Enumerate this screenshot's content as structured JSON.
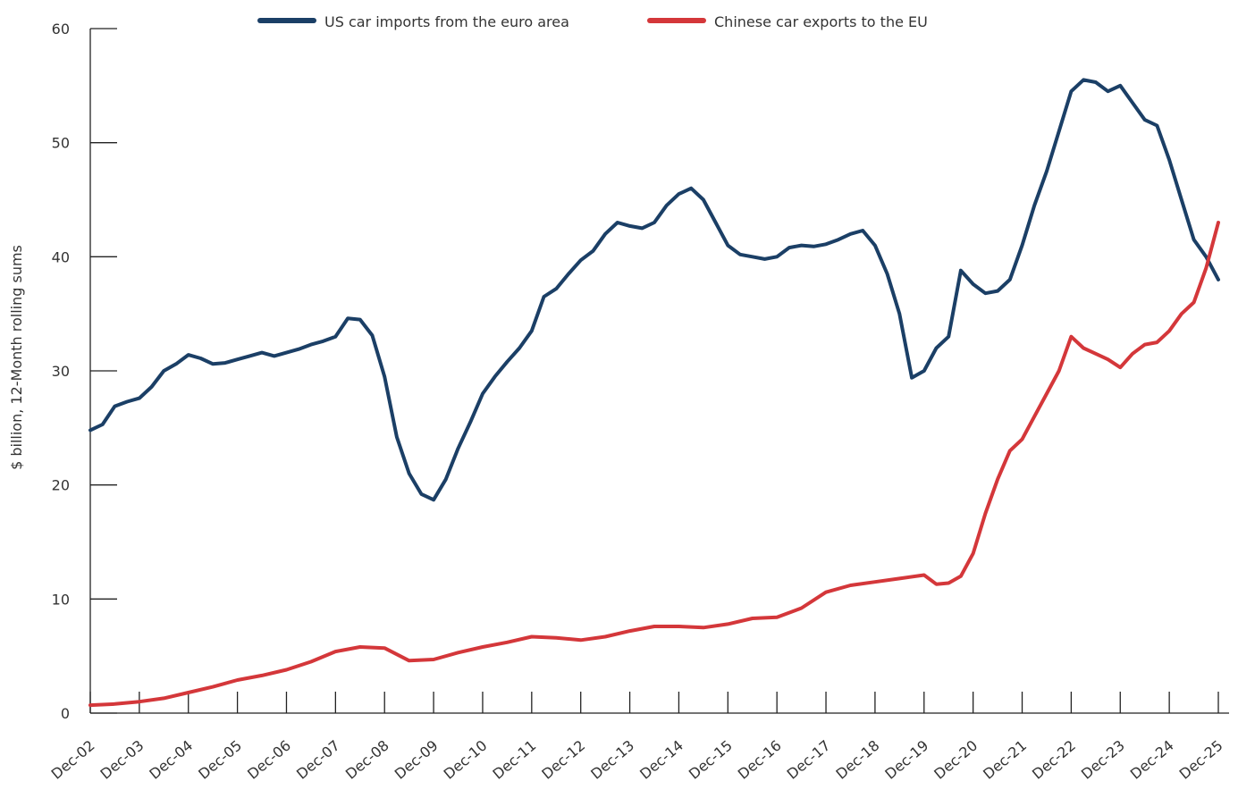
{
  "chart_data": {
    "type": "line",
    "title": "",
    "xlabel": "",
    "ylabel": "$ billion, 12-Month rolling sums",
    "ylim": [
      0,
      60
    ],
    "yticks": [
      0,
      10,
      20,
      30,
      40,
      50,
      60
    ],
    "x_tick_labels": [
      "Dec-02",
      "Dec-03",
      "Dec-04",
      "Dec-05",
      "Dec-06",
      "Dec-07",
      "Dec-08",
      "Dec-09",
      "Dec-10",
      "Dec-11",
      "Dec-12",
      "Dec-13",
      "Dec-14",
      "Dec-15",
      "Dec-16",
      "Dec-17",
      "Dec-18",
      "Dec-19",
      "Dec-20",
      "Dec-21",
      "Dec-22",
      "Dec-23",
      "Dec-24",
      "Dec-25"
    ],
    "x_range": [
      "2002-12",
      "2025-12"
    ],
    "grid": false,
    "legend_position": "top-center",
    "series": [
      {
        "name": "US car imports from the euro area",
        "color": "#1b3f66",
        "x": [
          "2002-12",
          "2003-03",
          "2003-06",
          "2003-09",
          "2003-12",
          "2004-03",
          "2004-06",
          "2004-09",
          "2004-12",
          "2005-03",
          "2005-06",
          "2005-09",
          "2005-12",
          "2006-03",
          "2006-06",
          "2006-09",
          "2006-12",
          "2007-03",
          "2007-06",
          "2007-09",
          "2007-12",
          "2008-03",
          "2008-06",
          "2008-09",
          "2008-12",
          "2009-03",
          "2009-06",
          "2009-09",
          "2009-12",
          "2010-03",
          "2010-06",
          "2010-09",
          "2010-12",
          "2011-03",
          "2011-06",
          "2011-09",
          "2011-12",
          "2012-03",
          "2012-06",
          "2012-09",
          "2012-12",
          "2013-03",
          "2013-06",
          "2013-09",
          "2013-12",
          "2014-03",
          "2014-06",
          "2014-09",
          "2014-12",
          "2015-03",
          "2015-06",
          "2015-09",
          "2015-12",
          "2016-03",
          "2016-06",
          "2016-09",
          "2016-12",
          "2017-03",
          "2017-06",
          "2017-09",
          "2017-12",
          "2018-03",
          "2018-06",
          "2018-09",
          "2018-12",
          "2019-03",
          "2019-06",
          "2019-09",
          "2019-12",
          "2020-03",
          "2020-06",
          "2020-09",
          "2020-12",
          "2021-03",
          "2021-06",
          "2021-09",
          "2021-12",
          "2022-03",
          "2022-06",
          "2022-09",
          "2022-12",
          "2023-03",
          "2023-06",
          "2023-09",
          "2023-12",
          "2024-03",
          "2024-06",
          "2024-09",
          "2024-12",
          "2025-03",
          "2025-06",
          "2025-09",
          "2025-12"
        ],
        "values": [
          24.8,
          25.3,
          26.9,
          27.3,
          27.6,
          28.6,
          30.0,
          30.6,
          31.4,
          31.1,
          30.6,
          30.7,
          31.0,
          31.3,
          31.6,
          31.3,
          31.6,
          31.9,
          32.3,
          32.6,
          33.0,
          34.6,
          34.5,
          33.1,
          29.5,
          24.2,
          21.0,
          19.2,
          18.7,
          20.5,
          23.2,
          25.5,
          28.0,
          29.5,
          30.8,
          32.0,
          33.5,
          36.5,
          37.2,
          38.5,
          39.7,
          40.5,
          42.0,
          43.0,
          42.7,
          42.5,
          43.0,
          44.5,
          45.5,
          46.0,
          45.0,
          43.0,
          41.0,
          40.2,
          40.0,
          39.8,
          40.0,
          40.8,
          41.0,
          40.9,
          41.1,
          41.5,
          42.0,
          42.3,
          41.0,
          38.5,
          35.0,
          29.4,
          30.0,
          32.0,
          33.0,
          38.8,
          37.6,
          36.8,
          37.0,
          38.0,
          41.0,
          44.5,
          47.5,
          51.0,
          54.5,
          55.5,
          55.3,
          54.5,
          55.0,
          53.5,
          52.0,
          51.5,
          48.5,
          45.0,
          41.5,
          40.0,
          38.0
        ]
      },
      {
        "name": "Chinese car exports to the EU",
        "color": "#d4373a",
        "x": [
          "2002-12",
          "2003-06",
          "2003-12",
          "2004-06",
          "2004-12",
          "2005-06",
          "2005-12",
          "2006-06",
          "2006-12",
          "2007-06",
          "2007-12",
          "2008-06",
          "2008-12",
          "2009-06",
          "2009-12",
          "2010-06",
          "2010-12",
          "2011-06",
          "2011-12",
          "2012-06",
          "2012-12",
          "2013-06",
          "2013-12",
          "2014-06",
          "2014-12",
          "2015-06",
          "2015-12",
          "2016-06",
          "2016-12",
          "2017-06",
          "2017-12",
          "2018-06",
          "2018-12",
          "2019-06",
          "2019-12",
          "2020-03",
          "2020-06",
          "2020-09",
          "2020-12",
          "2021-03",
          "2021-06",
          "2021-09",
          "2021-12",
          "2022-03",
          "2022-06",
          "2022-09",
          "2022-12",
          "2023-03",
          "2023-06",
          "2023-09",
          "2023-12",
          "2024-03",
          "2024-06",
          "2024-09",
          "2024-12",
          "2025-03",
          "2025-06",
          "2025-09",
          "2025-12"
        ],
        "values": [
          0.7,
          0.8,
          1.0,
          1.3,
          1.8,
          2.3,
          2.9,
          3.3,
          3.8,
          4.5,
          5.4,
          5.8,
          5.7,
          4.6,
          4.7,
          5.3,
          5.8,
          6.2,
          6.7,
          6.6,
          6.4,
          6.7,
          7.2,
          7.6,
          7.6,
          7.5,
          7.8,
          8.3,
          8.4,
          9.2,
          10.6,
          11.2,
          11.5,
          11.8,
          12.1,
          11.3,
          11.4,
          12.0,
          14.0,
          17.5,
          20.5,
          23.0,
          24.0,
          26.0,
          28.0,
          30.0,
          33.0,
          32.0,
          31.5,
          31.0,
          30.3,
          31.5,
          32.3,
          32.5,
          33.5,
          35.0,
          36.0,
          39.0,
          43.0
        ]
      }
    ]
  }
}
